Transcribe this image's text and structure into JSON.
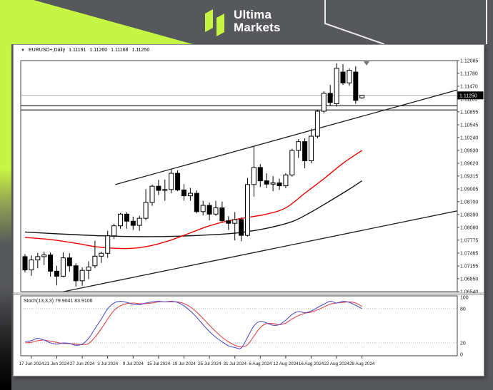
{
  "brand": {
    "name_line1": "Ultima",
    "name_line2": "Markets",
    "accent_color": "#c7f544",
    "background_color": "#57585b"
  },
  "window": {
    "quote": {
      "dropdown_icon": "▼",
      "symbol_period": "EURUSD+,Daily",
      "open": "1.11191",
      "high": "1.11260",
      "low": "1.11168",
      "close": "1.11250"
    }
  },
  "chart_data": {
    "type": "candlestick+stochastic",
    "symbol": "EURUSD+",
    "timeframe": "Daily",
    "colors": {
      "bull": "#ffffff",
      "bear": "#000000",
      "outline": "#000000",
      "fast_ma": "#f50000",
      "slow_ma": "#141414",
      "trendline": "#1c1c1c",
      "current_price_line": "#ababab",
      "sr_line": "#2e2e2e",
      "stoch_main": "#5353d1",
      "stoch_signal": "#e04848",
      "level_dots": "#bdbdbd"
    },
    "price_axis_labels": [
      "1.12085",
      "1.11780",
      "1.11470",
      "1.11165",
      "1.10855",
      "1.10545",
      "1.10240",
      "1.09930",
      "1.09620",
      "1.09315",
      "1.09005",
      "1.08700",
      "1.08390",
      "1.08080",
      "1.07775",
      "1.07465",
      "1.07155",
      "1.06850",
      "1.06540"
    ],
    "price_axis_values": [
      1.12085,
      1.1178,
      1.1147,
      1.11165,
      1.10855,
      1.10545,
      1.1024,
      1.0993,
      1.0962,
      1.09315,
      1.09005,
      1.087,
      1.0839,
      1.0808,
      1.07775,
      1.07465,
      1.07155,
      1.0685,
      1.0654
    ],
    "current_price_label": "1.11250",
    "current_price": 1.1125,
    "date_tick_labels": [
      "17 Jun 2024",
      "21 Jun 2024",
      "27 Jun 2024",
      "3 Jul 2024",
      "9 Jul 2024",
      "15 Jul 2024",
      "19 Jul 2024",
      "25 Jul 2024",
      "31 Jul 2024",
      "6 Aug 2024",
      "12 Aug 2024",
      "16 Aug 2024",
      "22 Aug 2024",
      "28 Aug 2024"
    ],
    "date_tick_indices": [
      1,
      5,
      9,
      13,
      17,
      21,
      25,
      29,
      33,
      37,
      41,
      45,
      49,
      53
    ],
    "candle_dates": [
      "14 Jun",
      "17 Jun",
      "18 Jun",
      "19 Jun",
      "20 Jun",
      "21 Jun",
      "24 Jun",
      "25 Jun",
      "26 Jun",
      "27 Jun",
      "28 Jun",
      "1 Jul",
      "2 Jul",
      "3 Jul",
      "4 Jul",
      "5 Jul",
      "8 Jul",
      "9 Jul",
      "10 Jul",
      "11 Jul",
      "12 Jul",
      "15 Jul",
      "16 Jul",
      "17 Jul",
      "18 Jul",
      "19 Jul",
      "22 Jul",
      "23 Jul",
      "24 Jul",
      "25 Jul",
      "26 Jul",
      "29 Jul",
      "30 Jul",
      "31 Jul",
      "1 Aug",
      "2 Aug",
      "5 Aug",
      "6 Aug",
      "7 Aug",
      "8 Aug",
      "9 Aug",
      "12 Aug",
      "13 Aug",
      "14 Aug",
      "15 Aug",
      "16 Aug",
      "19 Aug",
      "20 Aug",
      "21 Aug",
      "22 Aug",
      "23 Aug",
      "26 Aug",
      "27 Aug",
      "28 Aug"
    ],
    "candles_ohlc": [
      [
        1.0738,
        1.0744,
        1.07,
        1.0706
      ],
      [
        1.0706,
        1.0741,
        1.0692,
        1.073
      ],
      [
        1.073,
        1.0747,
        1.071,
        1.0738
      ],
      [
        1.0738,
        1.075,
        1.0718,
        1.0742
      ],
      [
        1.0742,
        1.0748,
        1.069,
        1.0703
      ],
      [
        1.0703,
        1.0716,
        1.0669,
        1.0691
      ],
      [
        1.0691,
        1.0748,
        1.0689,
        1.0735
      ],
      [
        1.0735,
        1.0746,
        1.0702,
        1.0716
      ],
      [
        1.0716,
        1.0722,
        1.0666,
        1.068
      ],
      [
        1.068,
        1.0712,
        1.0668,
        1.0705
      ],
      [
        1.0705,
        1.0727,
        1.0684,
        1.0713
      ],
      [
        1.0716,
        1.0776,
        1.071,
        1.0739
      ],
      [
        1.0739,
        1.075,
        1.0723,
        1.0746
      ],
      [
        1.0746,
        1.08,
        1.0735,
        1.0788
      ],
      [
        1.0788,
        1.0817,
        1.078,
        1.0812
      ],
      [
        1.0812,
        1.0843,
        1.0805,
        1.084
      ],
      [
        1.084,
        1.0845,
        1.0805,
        1.0823
      ],
      [
        1.0823,
        1.0834,
        1.0802,
        1.0813
      ],
      [
        1.0813,
        1.0836,
        1.08,
        1.083
      ],
      [
        1.083,
        1.09,
        1.0825,
        1.0868
      ],
      [
        1.0868,
        1.0911,
        1.086,
        1.0907
      ],
      [
        1.0907,
        1.0922,
        1.0886,
        1.0897
      ],
      [
        1.0897,
        1.0923,
        1.0872,
        1.0899
      ],
      [
        1.0899,
        1.0948,
        1.089,
        1.0938
      ],
      [
        1.0938,
        1.0945,
        1.0895,
        1.0898
      ],
      [
        1.0898,
        1.0912,
        1.0872,
        1.0884
      ],
      [
        1.0884,
        1.0903,
        1.0872,
        1.089
      ],
      [
        1.089,
        1.0897,
        1.0842,
        1.0846
      ],
      [
        1.0846,
        1.0872,
        1.0837,
        1.0861
      ],
      [
        1.0861,
        1.0868,
        1.0825,
        1.084
      ],
      [
        1.084,
        1.0872,
        1.0836,
        1.0855
      ],
      [
        1.0855,
        1.087,
        1.082,
        1.0824
      ],
      [
        1.0824,
        1.0835,
        1.0802,
        1.0818
      ],
      [
        1.0818,
        1.0845,
        1.0777,
        1.0827
      ],
      [
        1.0827,
        1.0832,
        1.0775,
        1.0789
      ],
      [
        1.0789,
        1.0927,
        1.0786,
        1.0911
      ],
      [
        1.0911,
        1.1003,
        1.0882,
        1.0952
      ],
      [
        1.0952,
        1.096,
        1.0905,
        1.092
      ],
      [
        1.092,
        1.0938,
        1.0902,
        1.0912
      ],
      [
        1.0912,
        1.0931,
        1.0895,
        1.0915
      ],
      [
        1.0915,
        1.0925,
        1.0898,
        1.0908
      ],
      [
        1.0908,
        1.0938,
        1.0902,
        1.0934
      ],
      [
        1.0934,
        1.0997,
        1.093,
        1.0993
      ],
      [
        1.0993,
        1.102,
        1.0975,
        1.1014
      ],
      [
        1.1014,
        1.1022,
        1.095,
        1.0968
      ],
      [
        1.0968,
        1.1045,
        1.0962,
        1.1027
      ],
      [
        1.1027,
        1.109,
        1.1022,
        1.1087
      ],
      [
        1.1087,
        1.1135,
        1.1082,
        1.113
      ],
      [
        1.113,
        1.115,
        1.11,
        1.1108
      ],
      [
        1.1105,
        1.1202,
        1.1098,
        1.119
      ],
      [
        1.1181,
        1.12,
        1.115,
        1.1155
      ],
      [
        1.1155,
        1.119,
        1.1148,
        1.1185
      ],
      [
        1.1181,
        1.1195,
        1.1105,
        1.1113
      ],
      [
        1.11191,
        1.1126,
        1.11168,
        1.1125
      ]
    ],
    "ma_fast_points": [
      [
        0,
        1.0784
      ],
      [
        4,
        1.0779
      ],
      [
        8,
        1.077
      ],
      [
        11,
        1.0762
      ],
      [
        14,
        1.0758
      ],
      [
        17,
        1.0758
      ],
      [
        20,
        1.0765
      ],
      [
        23,
        1.0778
      ],
      [
        26,
        1.0795
      ],
      [
        29,
        1.0812
      ],
      [
        32,
        1.0824
      ],
      [
        35,
        1.0832
      ],
      [
        38,
        1.084
      ],
      [
        41,
        1.0855
      ],
      [
        44,
        1.089
      ],
      [
        47,
        1.0925
      ],
      [
        50,
        1.0962
      ],
      [
        53,
        1.0993
      ]
    ],
    "ma_slow_points": [
      [
        0,
        1.0797
      ],
      [
        6,
        1.0792
      ],
      [
        12,
        1.0788
      ],
      [
        18,
        1.0786
      ],
      [
        24,
        1.0787
      ],
      [
        30,
        1.0791
      ],
      [
        34,
        1.0796
      ],
      [
        38,
        1.0806
      ],
      [
        42,
        1.0822
      ],
      [
        45,
        1.0845
      ],
      [
        48,
        1.0872
      ],
      [
        51,
        1.09
      ],
      [
        53,
        1.092
      ]
    ],
    "trendlines": [
      {
        "i1": 14.2,
        "p1": 1.0911,
        "i2": 70.1,
        "p2": 1.1147
      },
      {
        "i1": 1.6,
        "p1": 1.064,
        "i2": 70.6,
        "p2": 1.0856
      }
    ],
    "hlines": [
      {
        "price": 1.1125,
        "style": "current"
      },
      {
        "price": 1.11,
        "style": "sr"
      },
      {
        "price": 1.109,
        "style": "sr"
      }
    ],
    "stochastic": {
      "label": "Stoch(13,3,3)",
      "main_value": "79.9041",
      "signal_value": "83.9106",
      "scale_labels": [
        "100",
        "80",
        "20",
        "0"
      ],
      "scale_values": [
        100,
        80,
        20,
        0
      ],
      "dotted_levels": [
        80,
        20
      ],
      "main": [
        22,
        24,
        28,
        25,
        20,
        18,
        20,
        19,
        16,
        18,
        28,
        45,
        62,
        80,
        90,
        93,
        91,
        88,
        87,
        90,
        92,
        93,
        92,
        93,
        91,
        85,
        76,
        65,
        52,
        40,
        30,
        22,
        15,
        12,
        11,
        30,
        50,
        58,
        55,
        51,
        52,
        60,
        70,
        75,
        73,
        76,
        82,
        88,
        93,
        90,
        93,
        91,
        86,
        80
      ],
      "signal": [
        20,
        21,
        24,
        25,
        23,
        21,
        19,
        19,
        18,
        17,
        19,
        30,
        45,
        62,
        77,
        85,
        89,
        90,
        89,
        89,
        90,
        92,
        92,
        92,
        92,
        89,
        83,
        74,
        63,
        51,
        40,
        30,
        22,
        16,
        13,
        17,
        32,
        47,
        54,
        54,
        52,
        55,
        62,
        68,
        72,
        74,
        78,
        83,
        88,
        90,
        91,
        92,
        90,
        84
      ]
    }
  }
}
